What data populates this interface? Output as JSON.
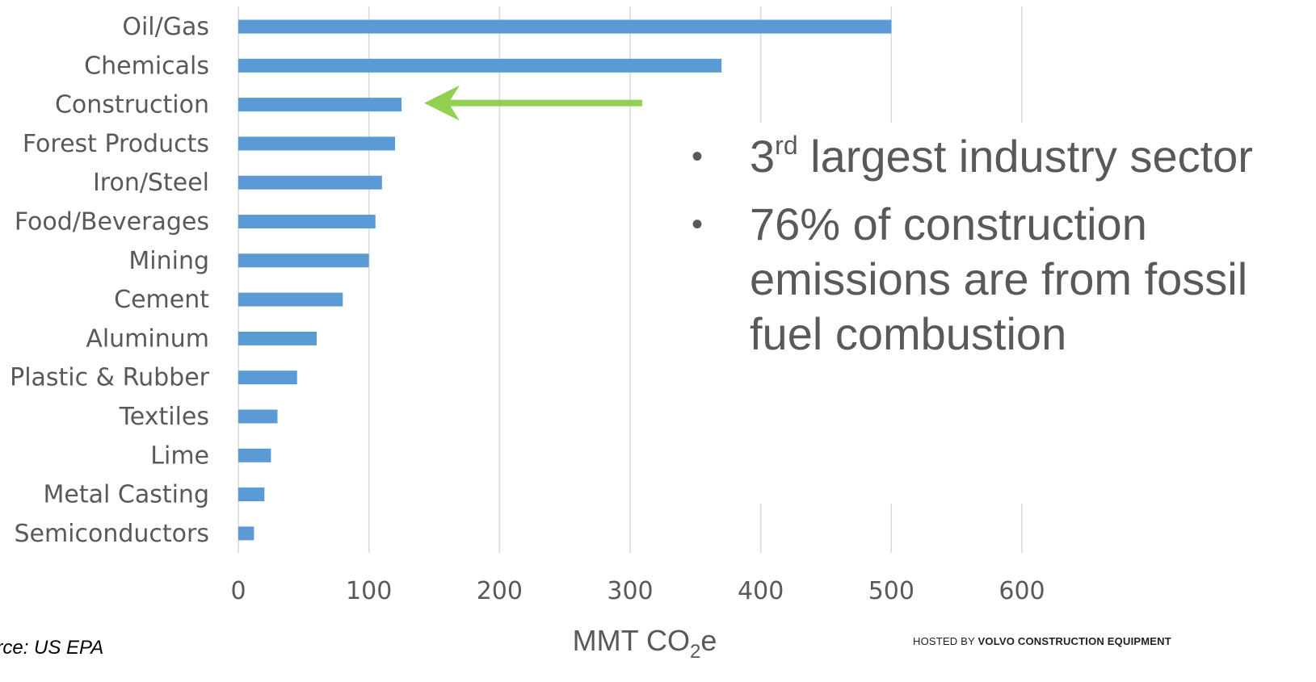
{
  "chart_data": {
    "type": "bar",
    "orientation": "horizontal",
    "categories": [
      "Oil/Gas",
      "Chemicals",
      "Construction",
      "Forest Products",
      "Iron/Steel",
      "Food/Beverages",
      "Mining",
      "Cement",
      "Aluminum",
      "Plastic & Rubber",
      "Textiles",
      "Lime",
      "Metal Casting",
      "Semiconductors"
    ],
    "values": [
      500,
      370,
      125,
      120,
      110,
      105,
      100,
      80,
      60,
      45,
      30,
      25,
      20,
      12
    ],
    "xlabel_base": "MMT CO",
    "xlabel_sub": "2",
    "xlabel_suffix": "e",
    "xlim": [
      0,
      600
    ],
    "xticks": [
      "0",
      "100",
      "200",
      "300",
      "400",
      "500",
      "600"
    ],
    "grid": "vertical",
    "bar_color": "#5b9bd5",
    "highlight_category": "Construction",
    "arrow_color": "#92d050"
  },
  "bullets": [
    {
      "pre": "3",
      "sup": "rd",
      "post": " largest industry sector"
    },
    {
      "pre": "76% of construction emissions are from fossil fuel combustion",
      "sup": "",
      "post": ""
    }
  ],
  "footer": {
    "source": "urce: US EPA",
    "hosted_prefix": "HOSTED BY ",
    "hosted_brand": "VOLVO CONSTRUCTION EQUIPMENT"
  }
}
